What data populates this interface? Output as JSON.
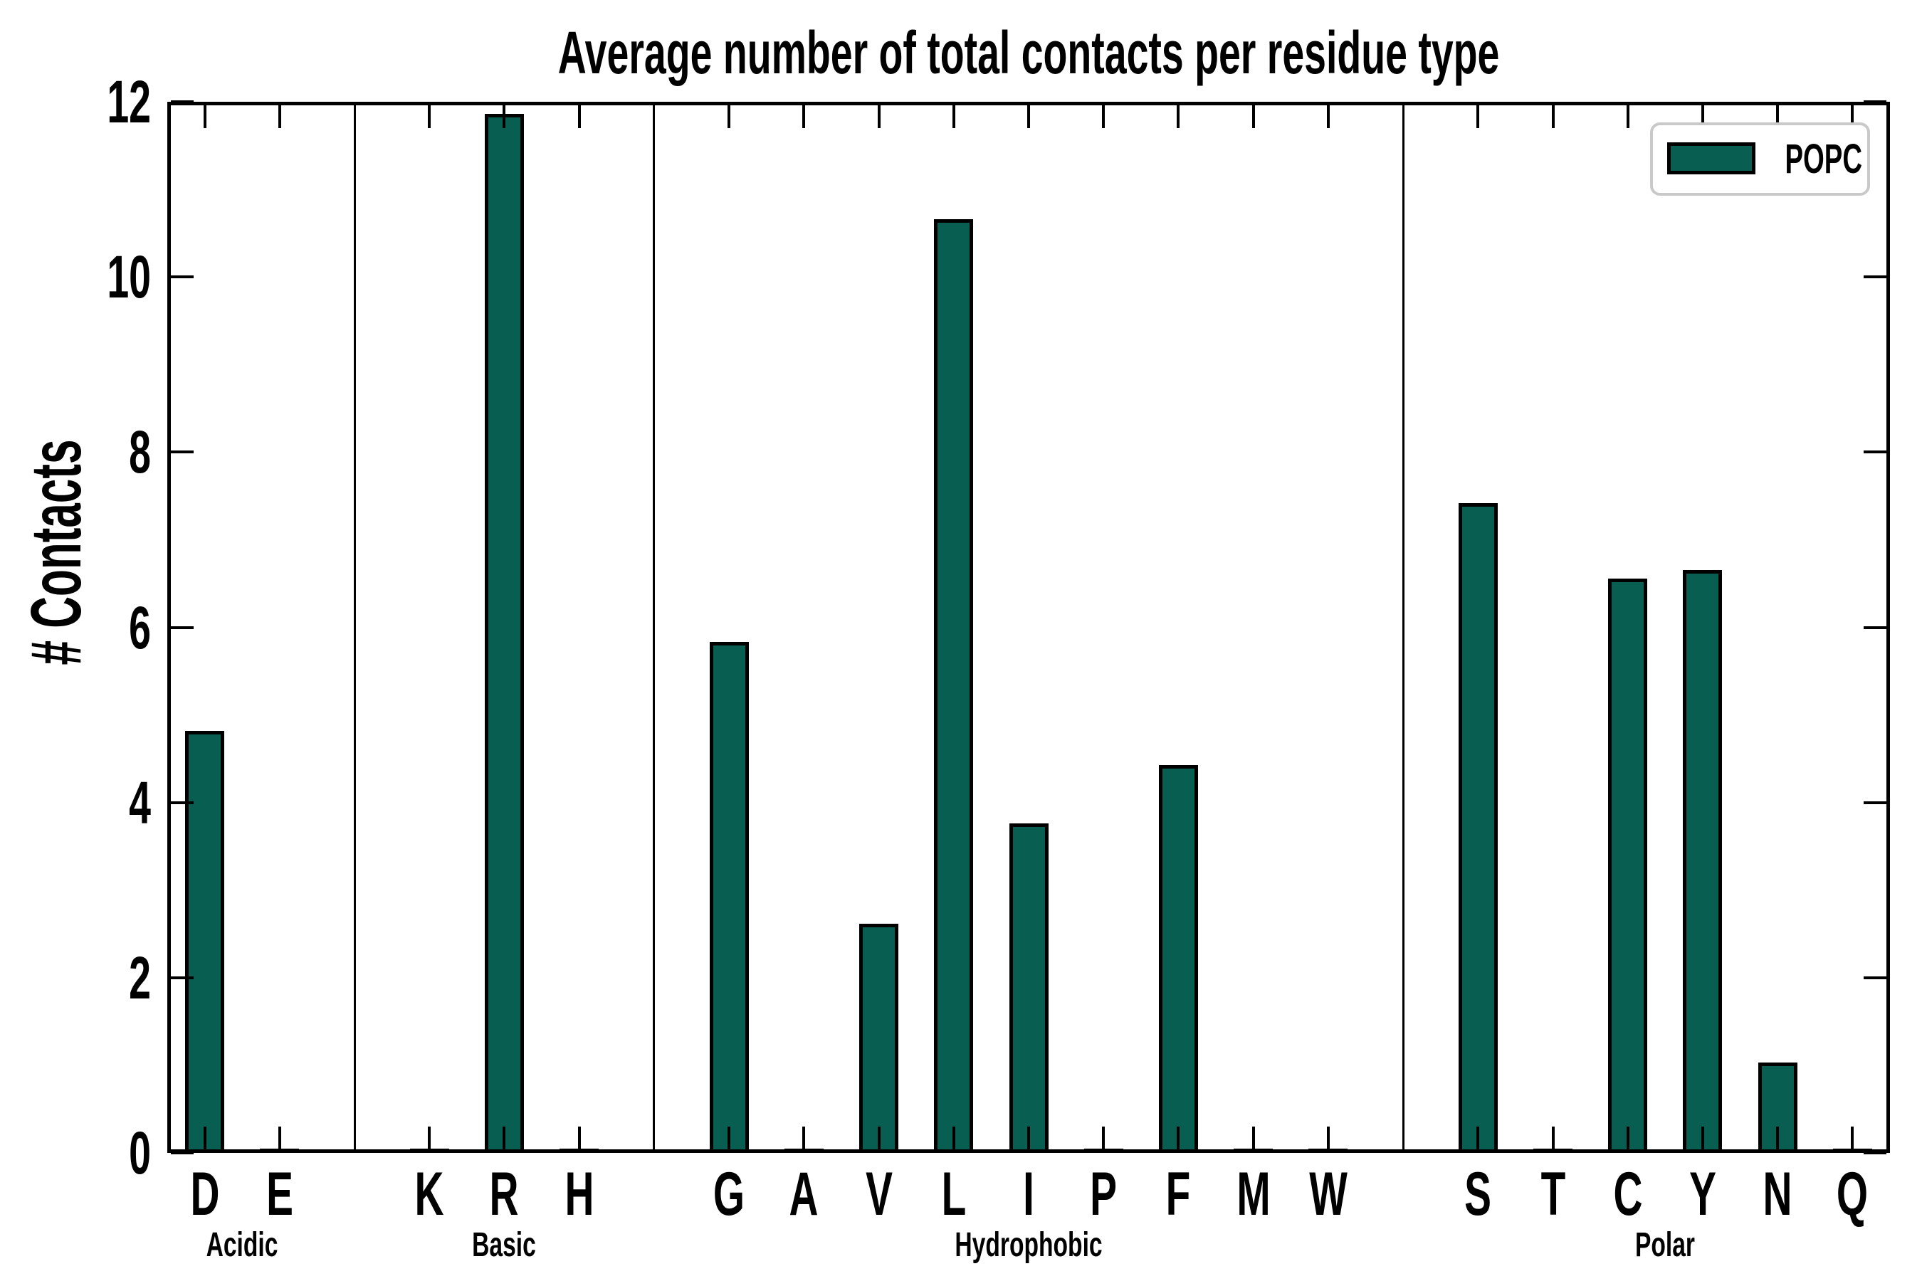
{
  "title": "Average number of total contacts per residue type",
  "y_axis": {
    "label": "# Contacts",
    "ticks": [
      0,
      2,
      4,
      6,
      8,
      10,
      12
    ]
  },
  "legend": {
    "label": "POPC"
  },
  "colors": {
    "bar_fill": "#075e51",
    "bar_edge": "#000000",
    "axis": "#000000",
    "legend_border": "#c9c9c9",
    "background": "#ffffff"
  },
  "chart_data": {
    "type": "bar",
    "title": "Average number of total contacts per residue type",
    "ylabel": "# Contacts",
    "ylim": [
      0,
      12
    ],
    "yticks": [
      0,
      2,
      4,
      6,
      8,
      10,
      12
    ],
    "grid": false,
    "legend_position": "upper-right",
    "series_name": "POPC",
    "groups": [
      {
        "label": "Acidic",
        "categories": [
          "D",
          "E"
        ],
        "values": [
          4.82,
          0.02
        ]
      },
      {
        "label": "Basic",
        "categories": [
          "K",
          "R",
          "H"
        ],
        "values": [
          0.02,
          11.86,
          0.02
        ]
      },
      {
        "label": "Hydrophobic",
        "categories": [
          "G",
          "A",
          "V",
          "L",
          "I",
          "P",
          "F",
          "M",
          "W"
        ],
        "values": [
          5.83,
          0.02,
          2.62,
          10.66,
          3.76,
          0.02,
          4.43,
          0.02,
          0.02
        ]
      },
      {
        "label": "Polar",
        "categories": [
          "S",
          "T",
          "C",
          "Y",
          "N",
          "Q"
        ],
        "values": [
          7.42,
          0.02,
          6.56,
          6.65,
          1.03,
          0.02
        ]
      }
    ]
  }
}
